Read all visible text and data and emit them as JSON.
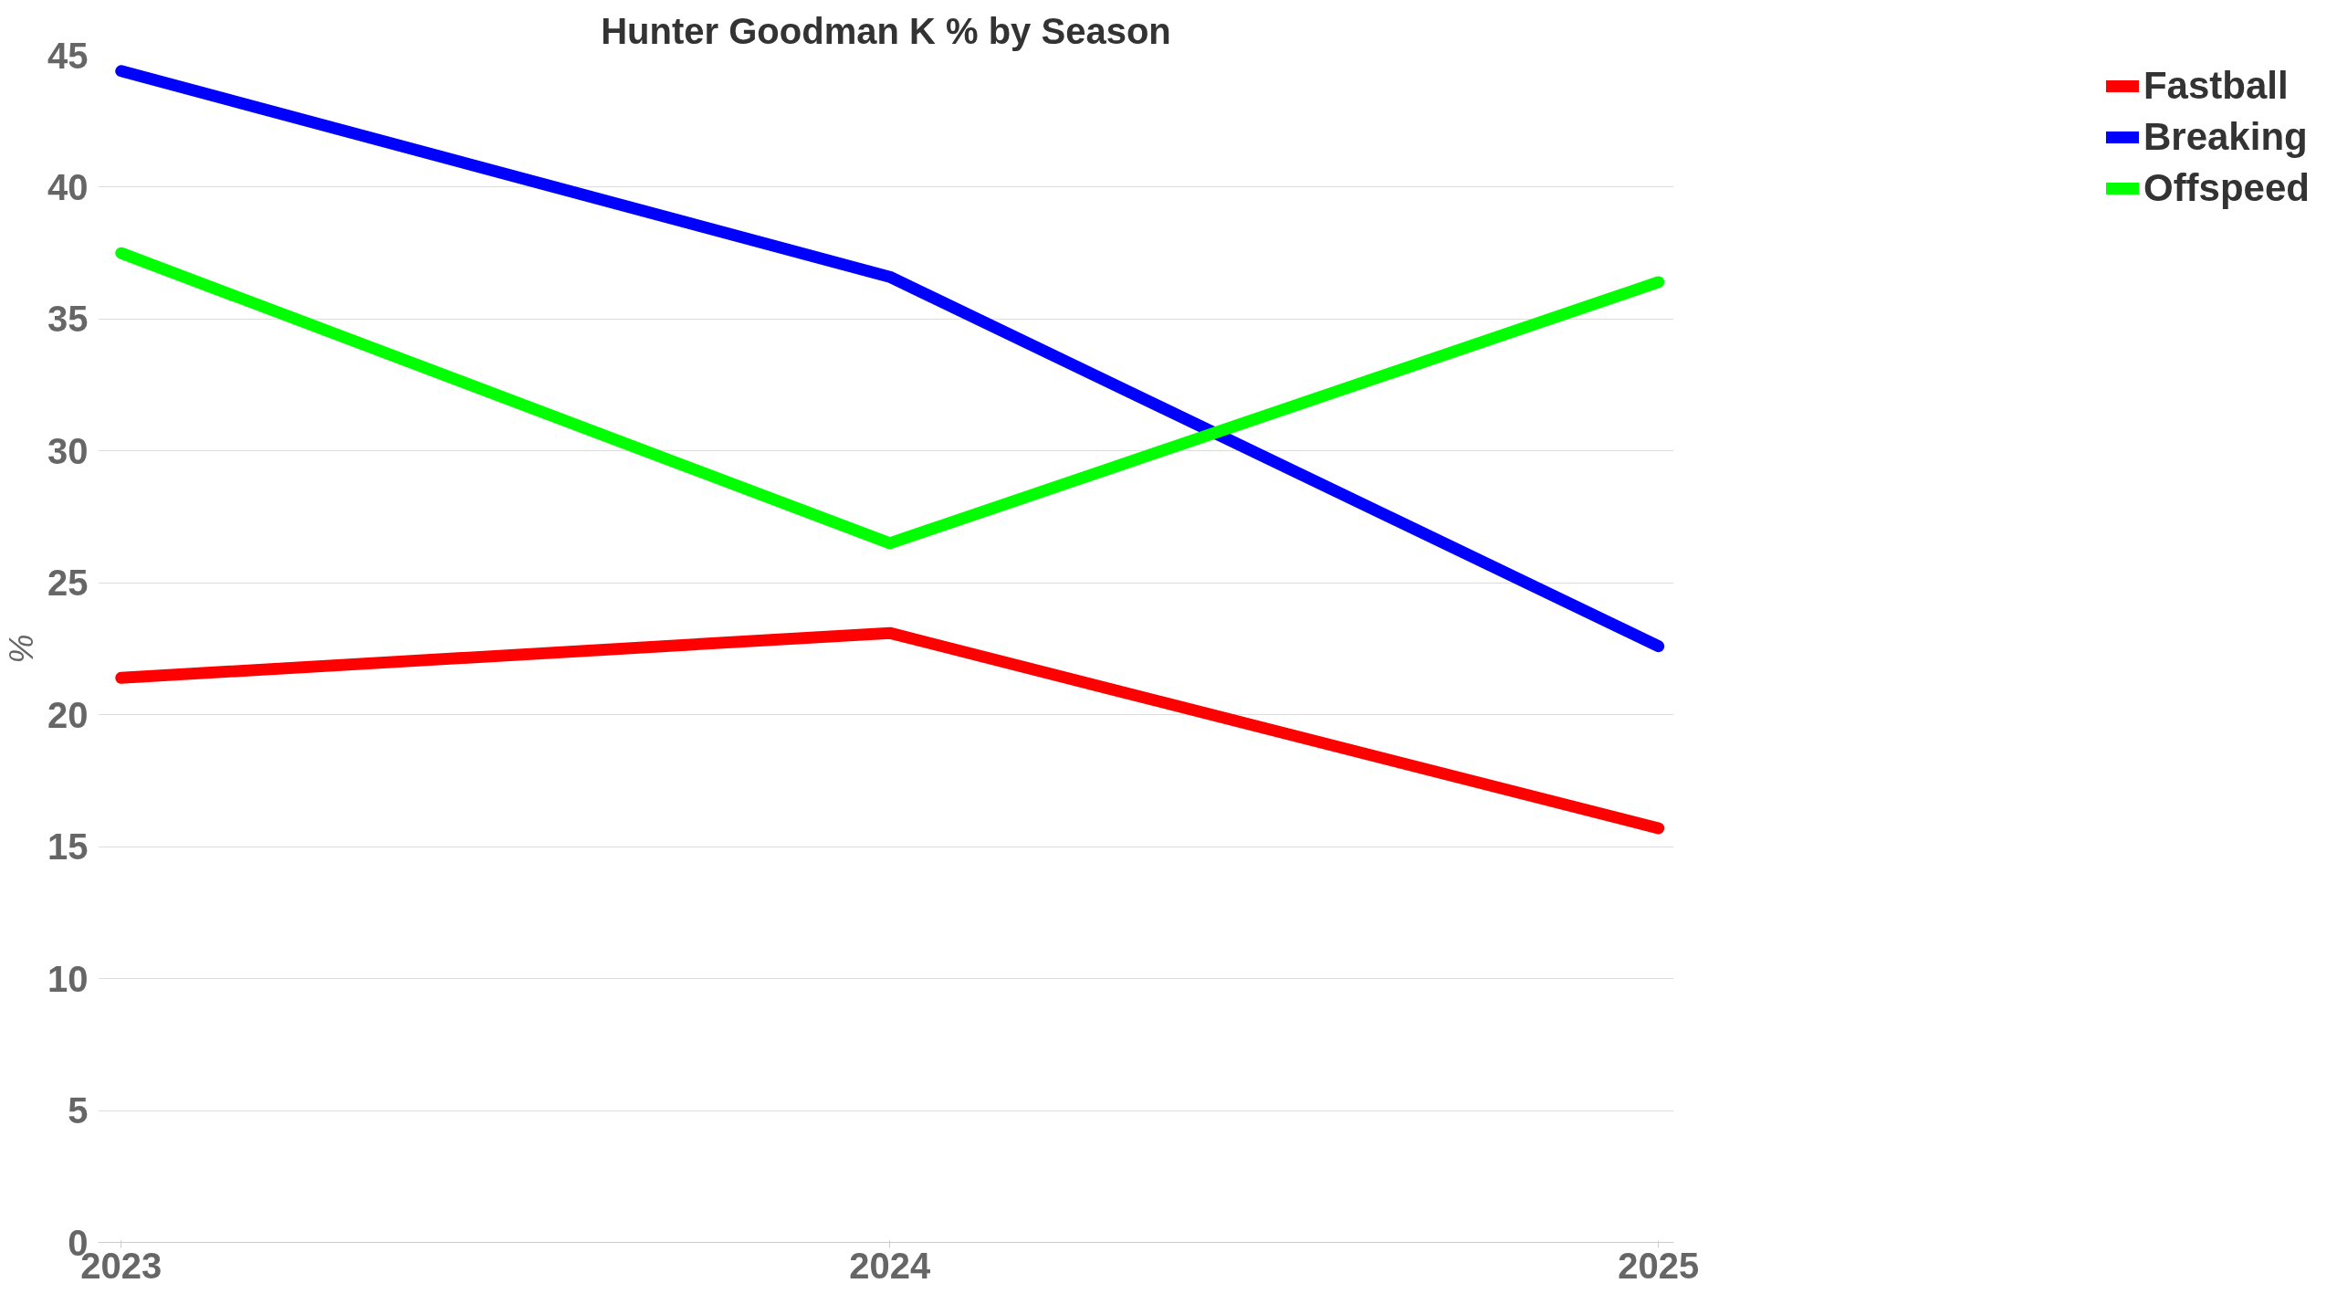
{
  "chart_data": {
    "type": "line",
    "title": "Hunter Goodman K % by Season",
    "ylabel": "%",
    "categories": [
      "2023",
      "2024",
      "2025"
    ],
    "series": [
      {
        "name": "Fastball",
        "color": "#ff0000",
        "values": [
          21.4,
          23.1,
          15.7
        ]
      },
      {
        "name": "Breaking",
        "color": "#0000ff",
        "values": [
          44.4,
          36.6,
          22.6
        ]
      },
      {
        "name": "Offspeed",
        "color": "#00ff00",
        "values": [
          37.5,
          26.5,
          36.4
        ]
      }
    ],
    "ylim": [
      0,
      45
    ],
    "yticks": [
      0,
      5,
      10,
      15,
      20,
      25,
      30,
      35,
      40,
      45
    ],
    "grid": "y",
    "legend": "right",
    "marker": "none",
    "line_style": "solid"
  }
}
